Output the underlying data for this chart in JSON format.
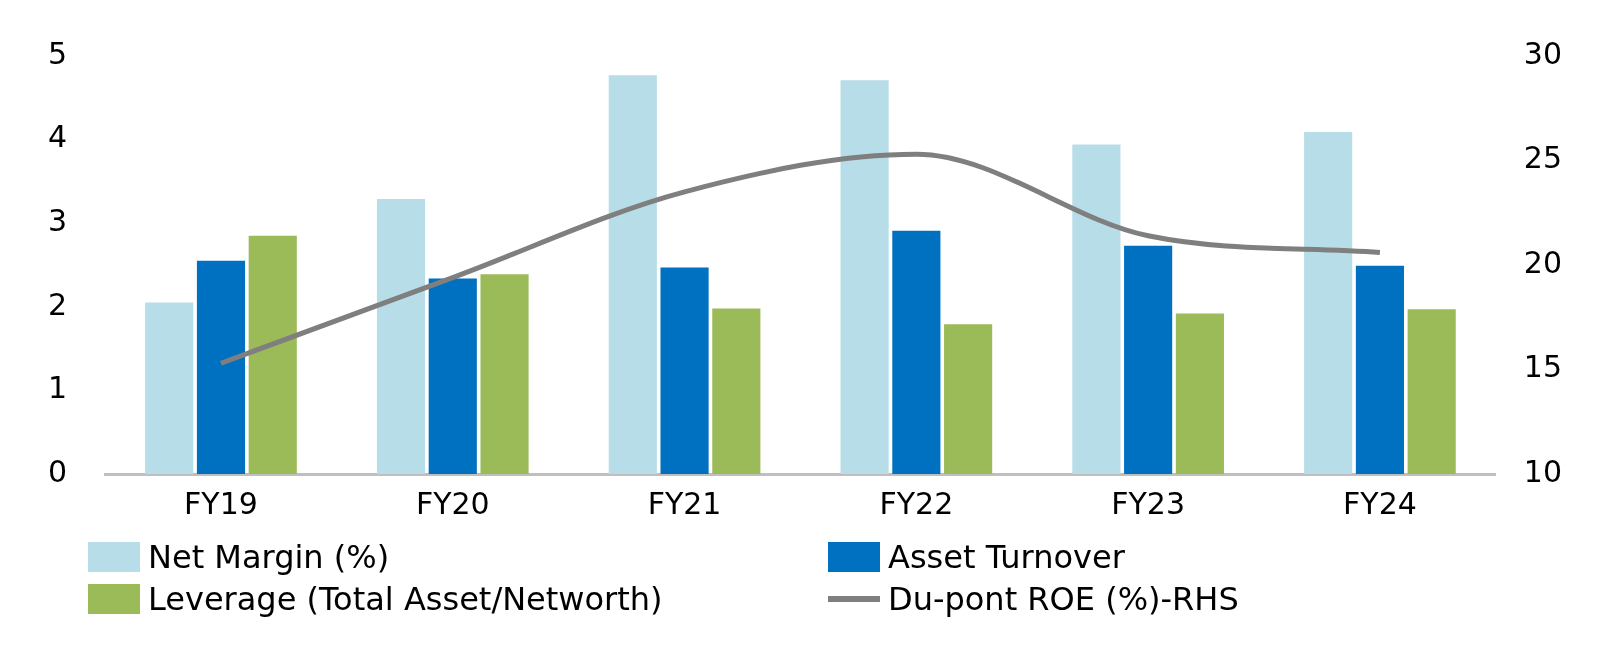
{
  "chart_data": {
    "type": "bar",
    "categories": [
      "FY19",
      "FY20",
      "FY21",
      "FY22",
      "FY23",
      "FY24"
    ],
    "series": [
      {
        "name": "Net Margin (%)",
        "color": "#b6dde8",
        "values": [
          2.05,
          3.29,
          4.77,
          4.71,
          3.94,
          4.09
        ]
      },
      {
        "name": "Asset Turnover",
        "color": "#0070c0",
        "values": [
          2.55,
          2.34,
          2.47,
          2.91,
          2.73,
          2.49
        ]
      },
      {
        "name": "Leverage (Total Asset/Networth)",
        "color": "#9bbb59",
        "values": [
          2.85,
          2.39,
          1.98,
          1.79,
          1.92,
          1.97
        ]
      },
      {
        "name": "Du-pont ROE (%)-RHS",
        "type": "line",
        "axis": "y2",
        "color": "#7f7f7f",
        "values": [
          15.3,
          19.4,
          23.5,
          25.3,
          21.4,
          20.6
        ]
      }
    ],
    "ylim": [
      0,
      5
    ],
    "yticks": [
      0,
      1,
      2,
      3,
      4,
      5
    ],
    "y2lim": [
      10,
      30
    ],
    "y2ticks": [
      10,
      15,
      20,
      25,
      30
    ],
    "grid": false,
    "legend": "bottom",
    "marker": "none"
  }
}
